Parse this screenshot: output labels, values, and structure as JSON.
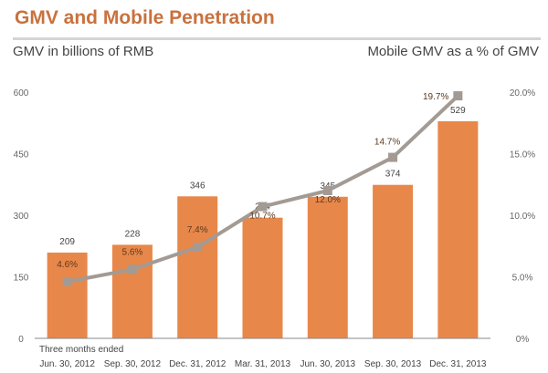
{
  "title": "GMV and Mobile Penetration",
  "left_subtitle": "GMV in billions of RMB",
  "right_subtitle": "Mobile GMV as a % of GMV",
  "chart_data": {
    "type": "bar",
    "title": "GMV and Mobile Penetration",
    "xlabel": "Three months ended",
    "categories": [
      "Jun. 30, 2012",
      "Sep. 30, 2012",
      "Dec. 31, 2012",
      "Mar. 31, 2013",
      "Jun. 30, 2013",
      "Sep. 30, 2013",
      "Dec. 31, 2013"
    ],
    "series": [
      {
        "name": "GMV in billions of RMB",
        "type": "bar",
        "axis": "left",
        "color": "#e8874a",
        "values": [
          209,
          228,
          346,
          294,
          345,
          374,
          529
        ],
        "labels": [
          "209",
          "228",
          "346",
          "294",
          "345",
          "374",
          "529"
        ]
      },
      {
        "name": "Mobile GMV as a % of GMV",
        "type": "line",
        "axis": "right",
        "color": "#a39a94",
        "values": [
          4.6,
          5.6,
          7.4,
          10.7,
          12.0,
          14.7,
          19.7
        ],
        "labels": [
          "4.6%",
          "5.6%",
          "7.4%",
          "10.7%",
          "12.0%",
          "14.7%",
          "19.7%"
        ]
      }
    ],
    "y_left": {
      "label": "GMV in billions of RMB",
      "range": [
        0,
        600
      ],
      "ticks": [
        "0",
        "150",
        "300",
        "450",
        "600"
      ]
    },
    "y_right": {
      "label": "Mobile GMV as a % of GMV",
      "range": [
        0,
        20
      ],
      "ticks": [
        "0%",
        "5.0%",
        "10.0%",
        "15.0%",
        "20.0%"
      ]
    },
    "grid": false,
    "legend": "none"
  }
}
